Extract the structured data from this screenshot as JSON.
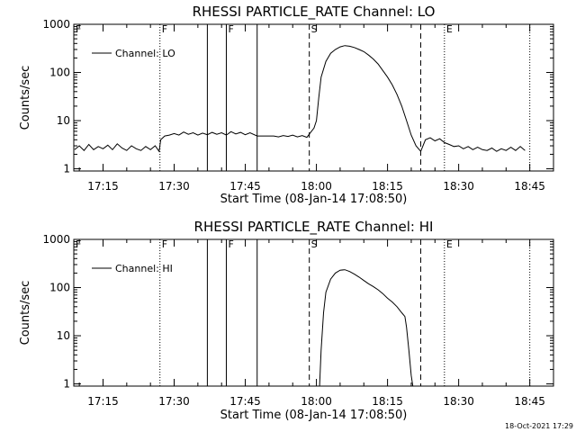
{
  "footer": {
    "timestamp": "18-Oct-2021 17:29"
  },
  "chart_data": [
    {
      "type": "line",
      "title": "RHESSI PARTICLE_RATE Channel: LO",
      "xlabel": "Start Time (08-Jan-14 17:08:50)",
      "ylabel": "Counts/sec",
      "yscale": "log",
      "ylim": [
        0.9,
        1000
      ],
      "xlim_minutes": [
        "17:08:50",
        "18:50:00"
      ],
      "x_ticks": [
        "17:15",
        "17:30",
        "17:45",
        "18:00",
        "18:15",
        "18:30",
        "18:45"
      ],
      "y_ticks": [
        "1",
        "10",
        "100",
        "1000"
      ],
      "legend": {
        "entry": "Channel: LO",
        "placement": "top-left"
      },
      "markers": [
        {
          "label": "F",
          "time": "17:27:00",
          "style": "dotted"
        },
        {
          "label": "",
          "time": "17:37:00",
          "style": "solid"
        },
        {
          "label": "F",
          "time": "17:41:00",
          "style": "solid"
        },
        {
          "label": "",
          "time": "17:47:30",
          "style": "solid"
        },
        {
          "label": "S",
          "time": "17:58:30",
          "style": "dashed"
        },
        {
          "label": "",
          "time": "18:22:00",
          "style": "dashed"
        },
        {
          "label": "E",
          "time": "18:27:00",
          "style": "dotted"
        },
        {
          "label": "",
          "time": "18:45:00",
          "style": "dotted"
        },
        {
          "label": "F",
          "time": "17:08:50",
          "style": "none"
        }
      ],
      "series": [
        {
          "name": "Channel: LO",
          "points": [
            [
              "17:09:00",
              2.5
            ],
            [
              "17:10:00",
              3.0
            ],
            [
              "17:11:00",
              2.4
            ],
            [
              "17:12:00",
              3.2
            ],
            [
              "17:13:00",
              2.5
            ],
            [
              "17:14:00",
              2.9
            ],
            [
              "17:15:00",
              2.6
            ],
            [
              "17:16:00",
              3.1
            ],
            [
              "17:17:00",
              2.5
            ],
            [
              "17:18:00",
              3.3
            ],
            [
              "17:19:00",
              2.7
            ],
            [
              "17:20:00",
              2.4
            ],
            [
              "17:21:00",
              3.0
            ],
            [
              "17:22:00",
              2.6
            ],
            [
              "17:23:00",
              2.4
            ],
            [
              "17:24:00",
              2.9
            ],
            [
              "17:25:00",
              2.5
            ],
            [
              "17:26:00",
              3.0
            ],
            [
              "17:26:50",
              2.3
            ],
            [
              "17:27:10",
              4.0
            ],
            [
              "17:28:00",
              4.8
            ],
            [
              "17:29:00",
              5.0
            ],
            [
              "17:30:00",
              5.4
            ],
            [
              "17:31:00",
              5.0
            ],
            [
              "17:32:00",
              5.8
            ],
            [
              "17:33:00",
              5.2
            ],
            [
              "17:34:00",
              5.6
            ],
            [
              "17:35:00",
              5.0
            ],
            [
              "17:36:00",
              5.5
            ],
            [
              "17:37:00",
              5.1
            ],
            [
              "17:38:00",
              5.7
            ],
            [
              "17:39:00",
              5.2
            ],
            [
              "17:40:00",
              5.6
            ],
            [
              "17:41:00",
              5.0
            ],
            [
              "17:42:00",
              5.9
            ],
            [
              "17:43:00",
              5.3
            ],
            [
              "17:44:00",
              5.7
            ],
            [
              "17:45:00",
              5.1
            ],
            [
              "17:46:00",
              5.6
            ],
            [
              "17:47:30",
              4.8
            ],
            [
              "17:49:00",
              4.8
            ],
            [
              "17:51:00",
              4.8
            ],
            [
              "17:52:00",
              4.6
            ],
            [
              "17:53:00",
              4.9
            ],
            [
              "17:54:00",
              4.7
            ],
            [
              "17:55:00",
              5.0
            ],
            [
              "17:56:00",
              4.6
            ],
            [
              "17:57:00",
              4.9
            ],
            [
              "17:58:00",
              4.5
            ],
            [
              "17:58:40",
              5.5
            ],
            [
              "17:59:30",
              7.0
            ],
            [
              "18:00:00",
              10
            ],
            [
              "18:00:30",
              30
            ],
            [
              "18:01:00",
              80
            ],
            [
              "18:02:00",
              170
            ],
            [
              "18:03:00",
              250
            ],
            [
              "18:04:00",
              300
            ],
            [
              "18:05:00",
              340
            ],
            [
              "18:06:00",
              360
            ],
            [
              "18:07:00",
              350
            ],
            [
              "18:08:00",
              330
            ],
            [
              "18:09:00",
              300
            ],
            [
              "18:10:00",
              270
            ],
            [
              "18:11:00",
              230
            ],
            [
              "18:12:00",
              190
            ],
            [
              "18:13:00",
              150
            ],
            [
              "18:14:00",
              110
            ],
            [
              "18:15:00",
              80
            ],
            [
              "18:16:00",
              55
            ],
            [
              "18:17:00",
              35
            ],
            [
              "18:18:00",
              20
            ],
            [
              "18:19:00",
              10
            ],
            [
              "18:20:00",
              5
            ],
            [
              "18:21:00",
              3
            ],
            [
              "18:22:00",
              2.3
            ],
            [
              "18:23:00",
              4.0
            ],
            [
              "18:24:00",
              4.4
            ],
            [
              "18:25:00",
              3.8
            ],
            [
              "18:26:00",
              4.2
            ],
            [
              "18:27:00",
              3.5
            ],
            [
              "18:28:00",
              3.2
            ],
            [
              "18:29:00",
              2.9
            ],
            [
              "18:30:00",
              3.0
            ],
            [
              "18:31:00",
              2.6
            ],
            [
              "18:32:00",
              2.9
            ],
            [
              "18:33:00",
              2.5
            ],
            [
              "18:34:00",
              2.8
            ],
            [
              "18:35:00",
              2.5
            ],
            [
              "18:36:00",
              2.4
            ],
            [
              "18:37:00",
              2.7
            ],
            [
              "18:38:00",
              2.3
            ],
            [
              "18:39:00",
              2.6
            ],
            [
              "18:40:00",
              2.4
            ],
            [
              "18:41:00",
              2.8
            ],
            [
              "18:42:00",
              2.4
            ],
            [
              "18:43:00",
              2.9
            ],
            [
              "18:44:00",
              2.4
            ]
          ]
        }
      ]
    },
    {
      "type": "line",
      "title": "RHESSI PARTICLE_RATE Channel: HI",
      "xlabel": "Start Time (08-Jan-14 17:08:50)",
      "ylabel": "Counts/sec",
      "yscale": "log",
      "ylim": [
        0.9,
        1000
      ],
      "xlim_minutes": [
        "17:08:50",
        "18:50:00"
      ],
      "x_ticks": [
        "17:15",
        "17:30",
        "17:45",
        "18:00",
        "18:15",
        "18:30",
        "18:45"
      ],
      "y_ticks": [
        "1",
        "10",
        "100",
        "1000"
      ],
      "legend": {
        "entry": "Channel: HI",
        "placement": "top-left"
      },
      "markers": [
        {
          "label": "F",
          "time": "17:27:00",
          "style": "dotted"
        },
        {
          "label": "",
          "time": "17:37:00",
          "style": "solid"
        },
        {
          "label": "F",
          "time": "17:41:00",
          "style": "solid"
        },
        {
          "label": "",
          "time": "17:47:30",
          "style": "solid"
        },
        {
          "label": "S",
          "time": "17:58:30",
          "style": "dashed"
        },
        {
          "label": "",
          "time": "18:22:00",
          "style": "dashed"
        },
        {
          "label": "E",
          "time": "18:27:00",
          "style": "dotted"
        },
        {
          "label": "",
          "time": "18:45:00",
          "style": "dotted"
        },
        {
          "label": "F",
          "time": "17:08:50",
          "style": "none"
        }
      ],
      "series": [
        {
          "name": "Channel: HI",
          "points": [
            [
              "18:00:40",
              0.9
            ],
            [
              "18:01:00",
              5
            ],
            [
              "18:01:30",
              30
            ],
            [
              "18:02:00",
              80
            ],
            [
              "18:03:00",
              150
            ],
            [
              "18:04:00",
              200
            ],
            [
              "18:05:00",
              230
            ],
            [
              "18:06:00",
              235
            ],
            [
              "18:07:00",
              215
            ],
            [
              "18:08:00",
              190
            ],
            [
              "18:09:00",
              165
            ],
            [
              "18:10:00",
              140
            ],
            [
              "18:11:00",
              120
            ],
            [
              "18:12:00",
              105
            ],
            [
              "18:13:00",
              90
            ],
            [
              "18:14:00",
              75
            ],
            [
              "18:15:00",
              60
            ],
            [
              "18:16:00",
              50
            ],
            [
              "18:17:00",
              40
            ],
            [
              "18:18:00",
              30
            ],
            [
              "18:18:40",
              25
            ],
            [
              "18:19:00",
              15
            ],
            [
              "18:19:30",
              5
            ],
            [
              "18:20:00",
              1.5
            ],
            [
              "18:20:20",
              0.9
            ]
          ]
        }
      ]
    }
  ]
}
